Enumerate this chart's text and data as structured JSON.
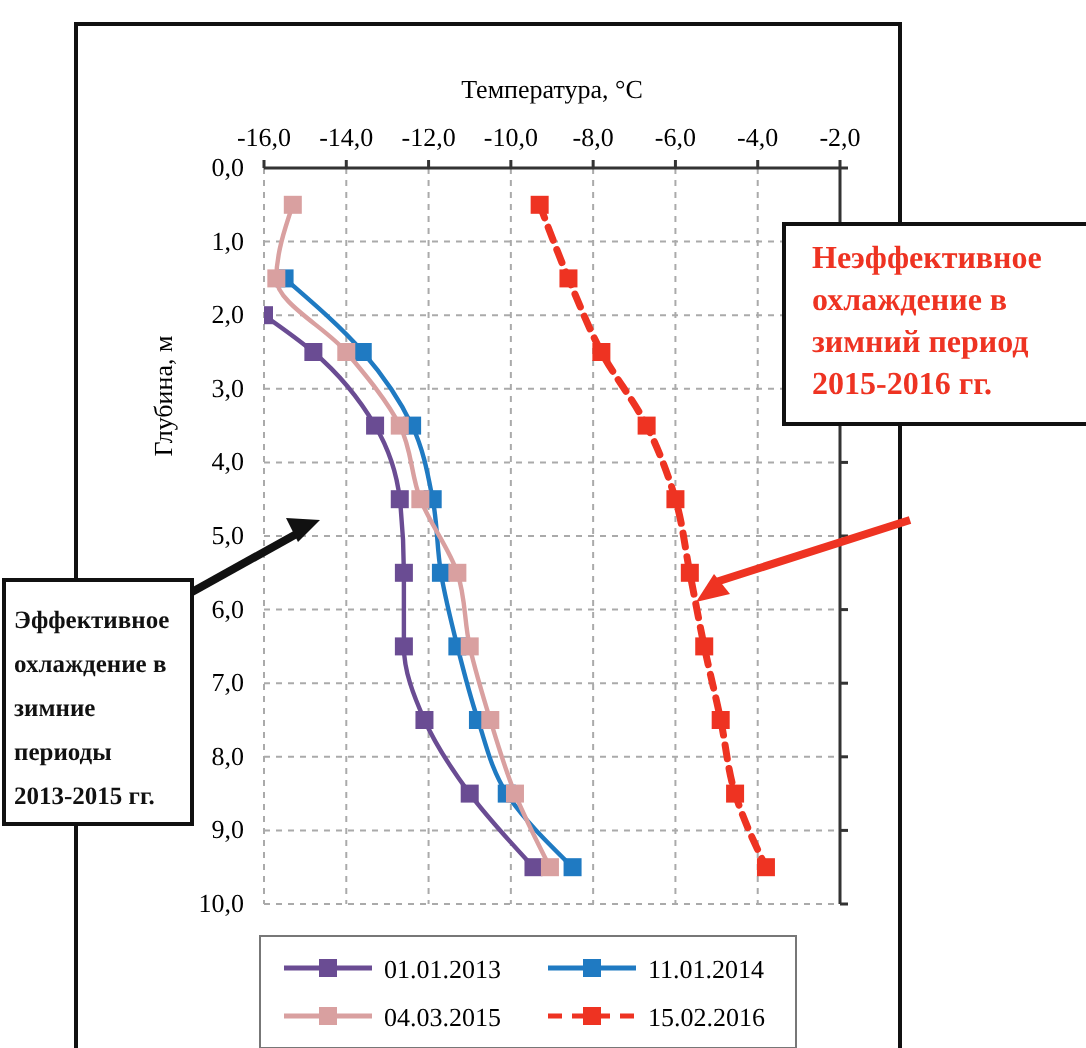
{
  "chart_data": {
    "type": "line",
    "xlabel": "Температура,  °C",
    "ylabel": "Глубина, м",
    "xlim": [
      -16,
      -2
    ],
    "xticks": [
      {
        "value": -16,
        "label": "-16,0"
      },
      {
        "value": -14,
        "label": "-14,0"
      },
      {
        "value": -12,
        "label": "-12,0"
      },
      {
        "value": -10,
        "label": "-10,0"
      },
      {
        "value": -8,
        "label": "-8,0"
      },
      {
        "value": -6,
        "label": "-6,0"
      },
      {
        "value": -4,
        "label": "-4,0"
      },
      {
        "value": -2,
        "label": "-2,0"
      }
    ],
    "ylim": [
      10,
      0
    ],
    "yticks": [
      {
        "value": 0,
        "label": "0,0"
      },
      {
        "value": 1,
        "label": "1,0"
      },
      {
        "value": 2,
        "label": "2,0"
      },
      {
        "value": 3,
        "label": "3,0"
      },
      {
        "value": 4,
        "label": "4,0"
      },
      {
        "value": 5,
        "label": "5,0"
      },
      {
        "value": 6,
        "label": "6,0"
      },
      {
        "value": 7,
        "label": "7,0"
      },
      {
        "value": 8,
        "label": "8,0"
      },
      {
        "value": 9,
        "label": "9,0"
      },
      {
        "value": 10,
        "label": "10,0"
      }
    ],
    "grid": true,
    "marker": "square",
    "legend": "bottom",
    "series": [
      {
        "name": "01.01.2013",
        "color": "#6a4c93",
        "x": [
          -16,
          -14.8,
          -13.3,
          -12.7,
          -12.6,
          -12.6,
          -12.1,
          -11.0,
          -9.45
        ],
        "values": [
          2.0,
          2.5,
          3.5,
          4.5,
          5.5,
          6.5,
          7.5,
          8.5,
          9.5
        ],
        "line_style": "solid"
      },
      {
        "name": "11.01.2014",
        "color": "#1f7ac2",
        "x": [
          -15.5,
          -13.6,
          -12.4,
          -11.9,
          -11.7,
          -11.3,
          -10.8,
          -10.1,
          -8.5
        ],
        "values": [
          1.5,
          2.5,
          3.5,
          4.5,
          5.5,
          6.5,
          7.5,
          8.5,
          9.5
        ],
        "line_style": "solid"
      },
      {
        "name": "04.03.2015",
        "color": "#d9a0a0",
        "x": [
          -15.3,
          -15.7,
          -14.0,
          -12.7,
          -12.2,
          -11.3,
          -11.0,
          -10.5,
          -9.9,
          -9.05
        ],
        "values": [
          0.5,
          1.5,
          2.5,
          3.5,
          4.5,
          5.5,
          6.5,
          7.5,
          8.5,
          9.5
        ],
        "line_style": "solid"
      },
      {
        "name": "15.02.2016",
        "color": "#ee3322",
        "x": [
          -9.3,
          -8.6,
          -7.8,
          -6.7,
          -6.0,
          -5.65,
          -5.3,
          -4.9,
          -4.55,
          -3.8
        ],
        "values": [
          0.5,
          1.5,
          2.5,
          3.5,
          4.5,
          5.5,
          6.5,
          7.5,
          8.5,
          9.5
        ],
        "line_style": "dashed"
      }
    ],
    "annotations": [
      "Неэффективное охлаждение в зимний период 2015-2016 гг.",
      "Эффективное охлаждение в зимние периоды 2013-2015 гг."
    ]
  }
}
